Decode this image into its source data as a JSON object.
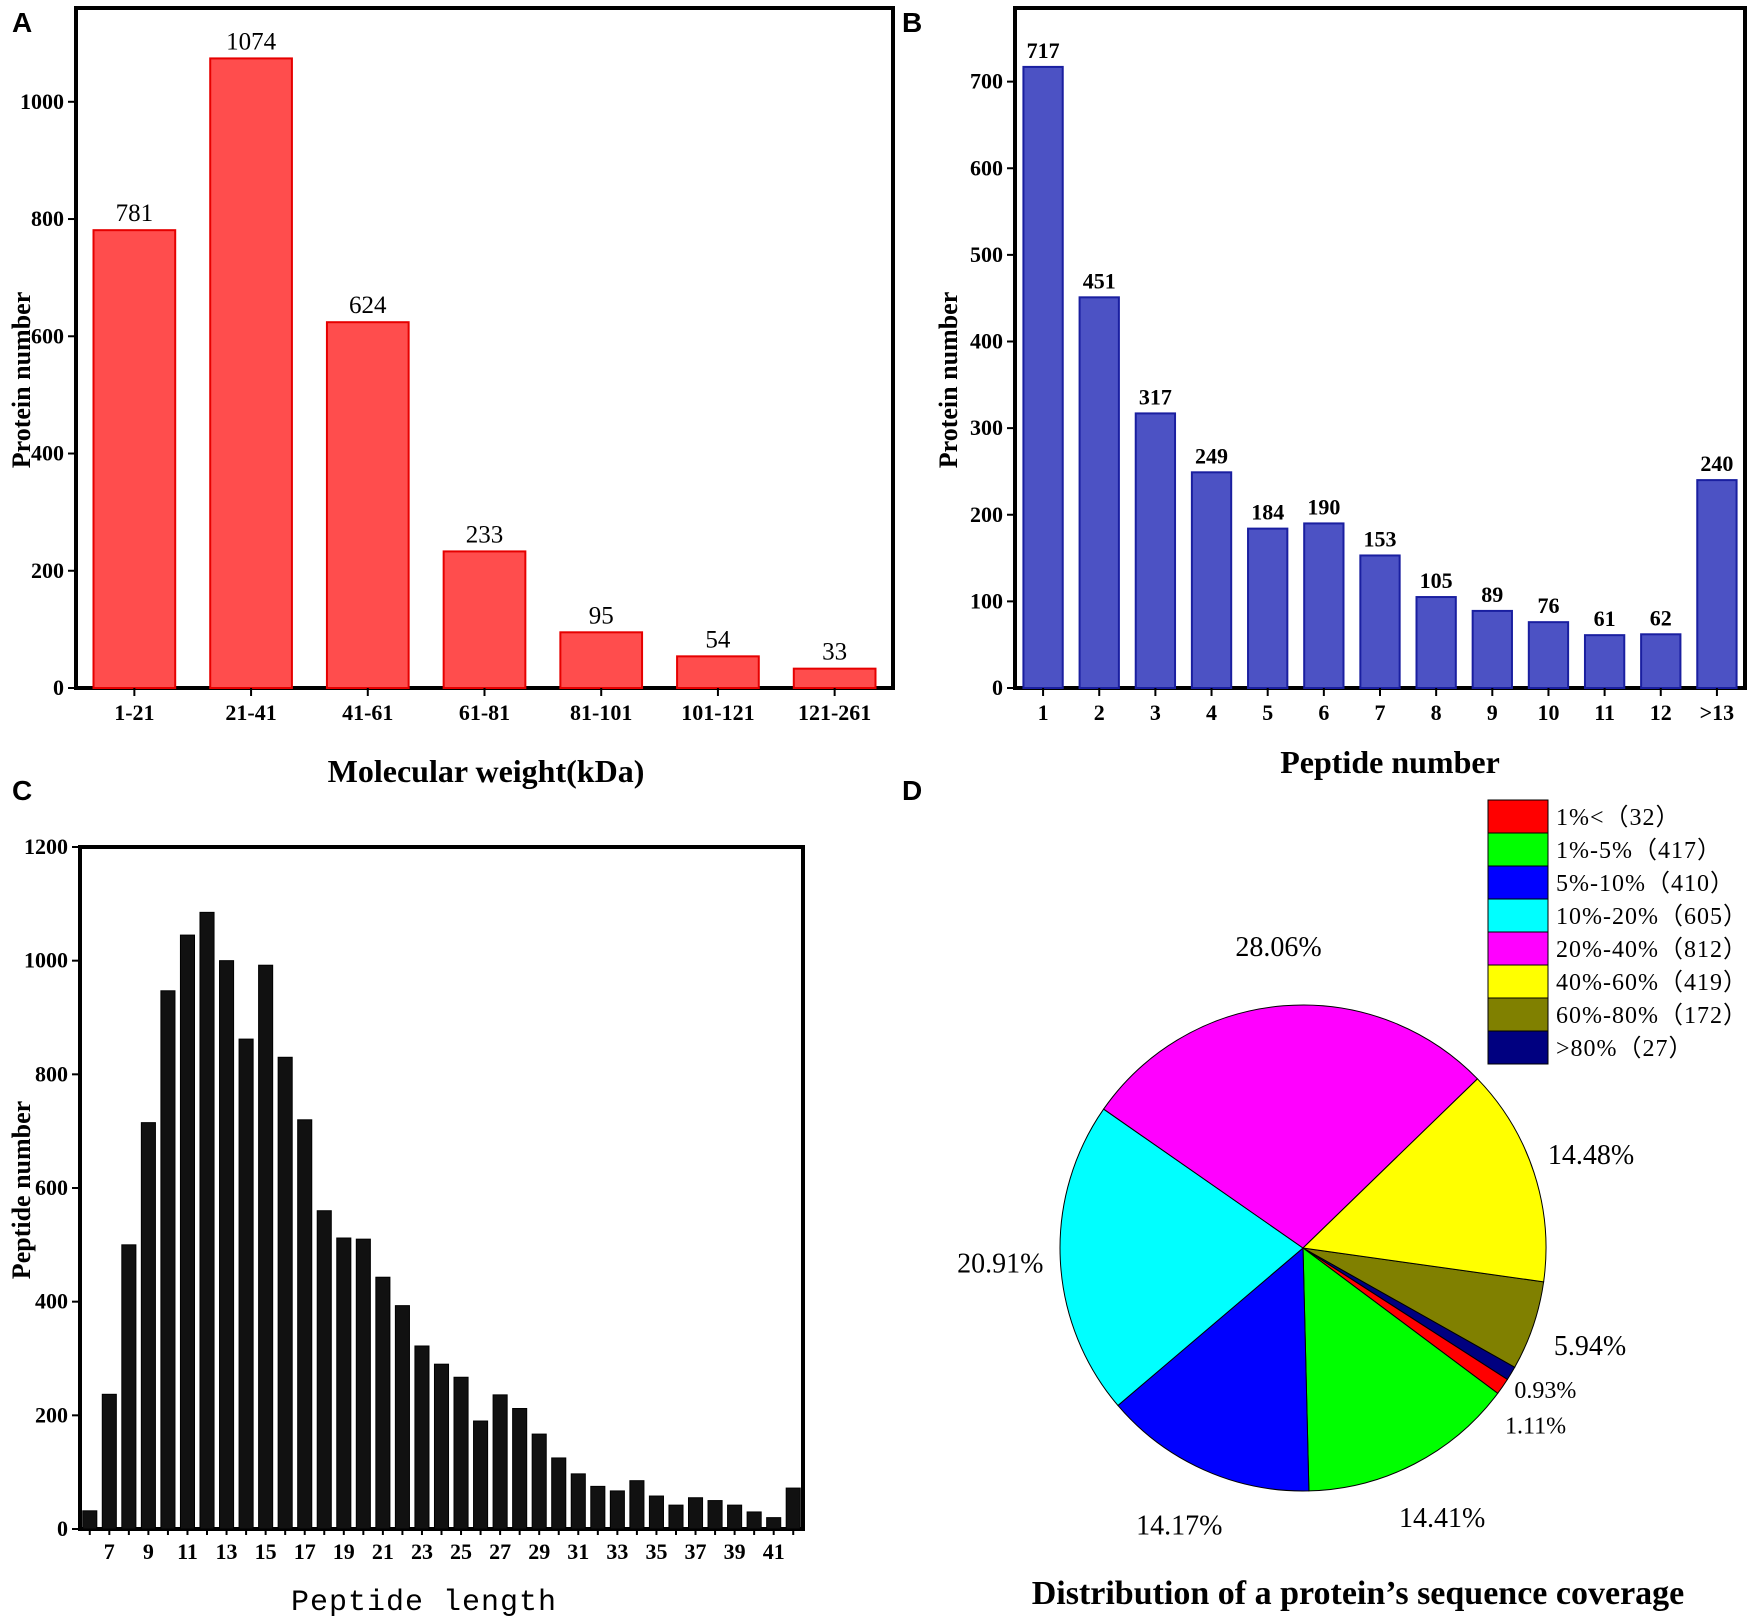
{
  "panels": {
    "a": "A",
    "b": "B",
    "c": "C",
    "d": "D"
  },
  "colors": {
    "bar_a": "#ff4d4d",
    "bar_a_edge": "#e60000",
    "bar_b": "#4c52c4",
    "bar_b_edge": "#1a1fa0",
    "bar_c": "#111111"
  },
  "chart_data": [
    {
      "type": "bar",
      "categories": [
        "1-21",
        "21-41",
        "41-61",
        "61-81",
        "81-101",
        "101-121",
        "121-261"
      ],
      "values": [
        781,
        1074,
        624,
        233,
        95,
        54,
        33
      ],
      "data_labels": [
        "781",
        "1074",
        "624",
        "233",
        "95",
        "54",
        "33"
      ],
      "title": "",
      "xlabel": "Molecular weight(kDa)",
      "ylabel": "Protein number",
      "ylim": [
        0,
        1160
      ],
      "yticks": [
        0,
        200,
        400,
        600,
        800,
        1000
      ],
      "ytick_labels": [
        "0",
        "200",
        "400",
        "600",
        "800",
        "1000"
      ]
    },
    {
      "type": "bar",
      "categories": [
        "1",
        "2",
        "3",
        "4",
        "5",
        "6",
        "7",
        "8",
        "9",
        "10",
        "11",
        "12",
        ">13"
      ],
      "values": [
        717,
        451,
        317,
        249,
        184,
        190,
        153,
        105,
        89,
        76,
        61,
        62,
        240
      ],
      "data_labels": [
        "717",
        "451",
        "317",
        "249",
        "184",
        "190",
        "153",
        "105",
        "89",
        "76",
        "61",
        "62",
        "240"
      ],
      "title": "",
      "xlabel": "Peptide number",
      "ylabel": "Protein number",
      "ylim": [
        0,
        785
      ],
      "yticks": [
        0,
        100,
        200,
        300,
        400,
        500,
        600,
        700
      ],
      "ytick_labels": [
        "0",
        "100",
        "200",
        "300",
        "400",
        "500",
        "600",
        "700"
      ]
    },
    {
      "type": "bar",
      "x": [
        6,
        7,
        8,
        9,
        10,
        11,
        12,
        13,
        14,
        15,
        16,
        17,
        18,
        19,
        20,
        21,
        22,
        23,
        24,
        25,
        26,
        27,
        28,
        29,
        30,
        31,
        32,
        33,
        34,
        35,
        36,
        37,
        38,
        39,
        40,
        41,
        42
      ],
      "values": [
        32,
        237,
        500,
        715,
        947,
        1045,
        1085,
        1000,
        862,
        992,
        830,
        720,
        560,
        512,
        510,
        443,
        393,
        322,
        290,
        267,
        190,
        236,
        212,
        167,
        125,
        97,
        75,
        67,
        85,
        58,
        42,
        55,
        50,
        42,
        30,
        20,
        72
      ],
      "xtick_labels": [
        "7",
        "9",
        "11",
        "13",
        "15",
        "17",
        "19",
        "21",
        "23",
        "25",
        "27",
        "29",
        "31",
        "33",
        "35",
        "37",
        "39",
        "41"
      ],
      "xtick_values": [
        7,
        9,
        11,
        13,
        15,
        17,
        19,
        21,
        23,
        25,
        27,
        29,
        31,
        33,
        35,
        37,
        39,
        41
      ],
      "title": "",
      "xlabel": "Peptide length",
      "ylabel": "Peptide number",
      "ylim": [
        0,
        1200
      ],
      "yticks": [
        0,
        200,
        400,
        600,
        800,
        1000,
        1200
      ],
      "ytick_labels": [
        "0",
        "200",
        "400",
        "600",
        "800",
        "1000",
        "1200"
      ]
    },
    {
      "type": "pie",
      "title": "Distribution of a protein’s sequence coverage",
      "slices": [
        {
          "label": "1%<（32）",
          "value": 32,
          "pct": "1.11%",
          "color": "#ff0000"
        },
        {
          "label": "1%-5%（417）",
          "value": 417,
          "pct": "14.41%",
          "color": "#00ff00"
        },
        {
          "label": "5%-10%（410）",
          "value": 410,
          "pct": "14.17%",
          "color": "#0000ff"
        },
        {
          "label": "10%-20%（605）",
          "value": 605,
          "pct": "20.91%",
          "color": "#00ffff"
        },
        {
          "label": "20%-40%（812）",
          "value": 812,
          "pct": "28.06%",
          "color": "#ff00ff"
        },
        {
          "label": "40%-60%（419）",
          "value": 419,
          "pct": "14.48%",
          "color": "#ffff00"
        },
        {
          "label": "60%-80%（172）",
          "value": 172,
          "pct": "5.94%",
          "color": "#808000"
        },
        {
          "label": ">80%（27）",
          "value": 27,
          "pct": "0.93%",
          "color": "#000080"
        }
      ]
    }
  ]
}
